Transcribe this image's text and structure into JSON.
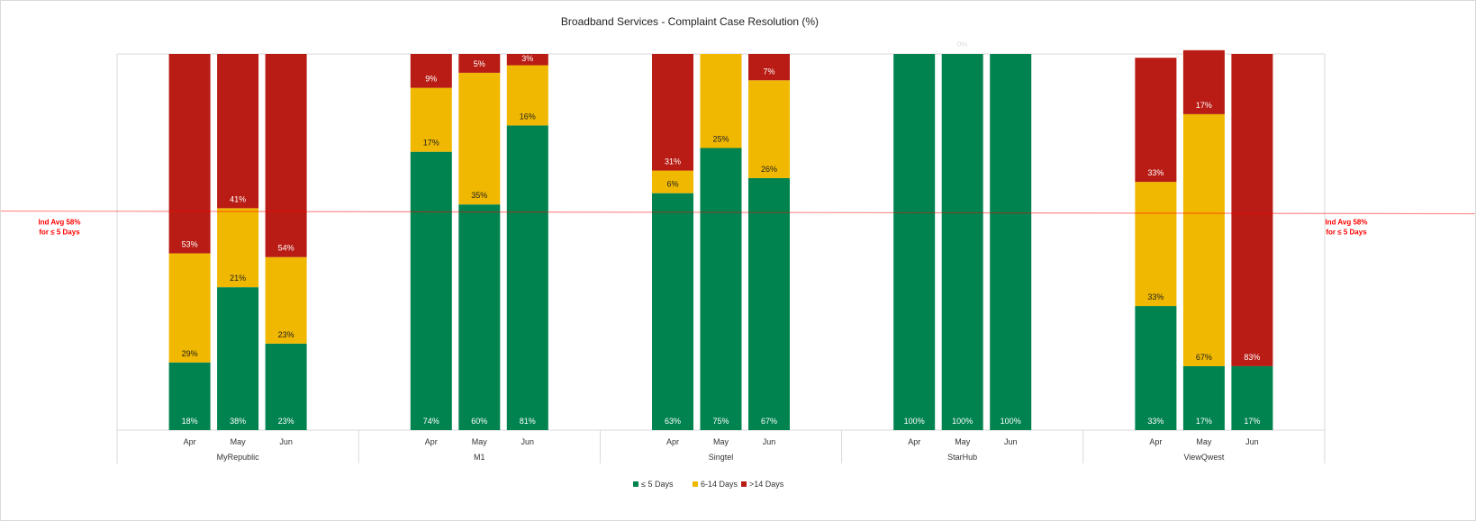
{
  "chart_data": {
    "type": "bar",
    "stacked": "100%",
    "title": "Broadband Services - Complaint Case Resolution (%)",
    "groups": [
      "MyRepublic",
      "M1",
      "Singtel",
      "StarHub",
      "ViewQwest"
    ],
    "categories": [
      "Apr",
      "May",
      "Jun"
    ],
    "ylim": [
      0,
      100
    ],
    "grid": false,
    "legend_position": "bottom",
    "series": [
      {
        "name": "≤ 5 Days",
        "color": "#00834f",
        "label_color": "#ffffff",
        "values": [
          [
            18,
            38,
            23
          ],
          [
            74,
            60,
            81
          ],
          [
            63,
            75,
            67
          ],
          [
            100,
            100,
            100
          ],
          [
            33,
            17,
            17
          ]
        ]
      },
      {
        "name": "6-14 Days",
        "color": "#f0b800",
        "label_color": "#222222",
        "values": [
          [
            29,
            21,
            23
          ],
          [
            17,
            35,
            16
          ],
          [
            6,
            25,
            26
          ],
          [
            0,
            0,
            0
          ],
          [
            33,
            67,
            0
          ]
        ]
      },
      {
        "name": ">14 Days",
        "color": "#b81c14",
        "label_color": "#ffffff",
        "values": [
          [
            53,
            41,
            54
          ],
          [
            9,
            5,
            3
          ],
          [
            31,
            0,
            7
          ],
          [
            0,
            0,
            0
          ],
          [
            33,
            17,
            83
          ]
        ]
      }
    ],
    "shown_labels": {
      "StarHub_top": "0%"
    },
    "reference_line": {
      "value": 58,
      "color": "#ff0000",
      "label_line1": "Ind Avg 58%",
      "label_line2": "for ≤ 5 Days"
    }
  }
}
